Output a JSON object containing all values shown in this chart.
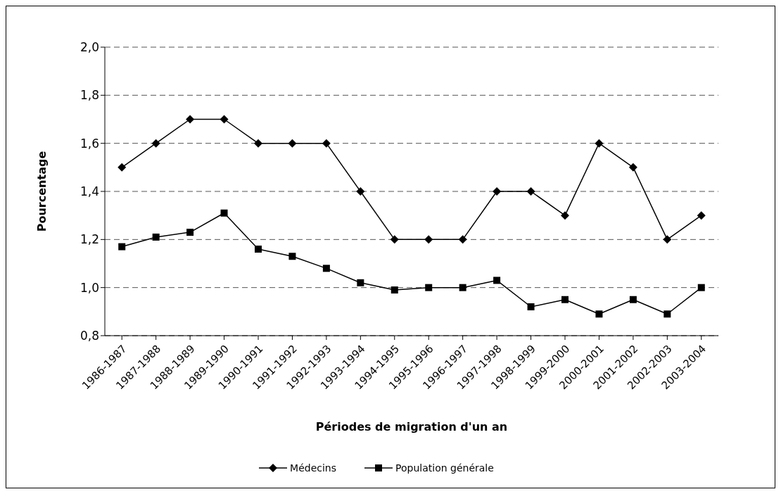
{
  "chart_data": {
    "type": "line",
    "xlabel": "Périodes de migration d'un an",
    "ylabel": "Pourcentage",
    "categories": [
      "1986-1987",
      "1987-1988",
      "1988-1989",
      "1989-1990",
      "1990-1991",
      "1991-1992",
      "1992-1993",
      "1993-1994",
      "1994-1995",
      "1995-1996",
      "1996-1997",
      "1997-1998",
      "1998-1999",
      "1999-2000",
      "2000-2001",
      "2001-2002",
      "2002-2003",
      "2003-2004"
    ],
    "series": [
      {
        "name": "Médecins",
        "color": "#000000",
        "marker": "diamond",
        "values": [
          1.5,
          1.6,
          1.7,
          1.7,
          1.6,
          1.6,
          1.6,
          1.4,
          1.2,
          1.2,
          1.2,
          1.4,
          1.4,
          1.3,
          1.6,
          1.5,
          1.2,
          1.3
        ]
      },
      {
        "name": "Population générale",
        "color": "#000000",
        "marker": "square",
        "values": [
          1.17,
          1.21,
          1.23,
          1.31,
          1.16,
          1.13,
          1.08,
          1.02,
          0.99,
          1.0,
          1.0,
          1.03,
          0.92,
          0.95,
          0.89,
          0.95,
          0.89,
          1.0
        ]
      }
    ],
    "ylim": [
      0.8,
      2.0
    ],
    "yticks": [
      {
        "value": 0.8,
        "label": "0,8"
      },
      {
        "value": 1.0,
        "label": "1,0"
      },
      {
        "value": 1.2,
        "label": "1,2"
      },
      {
        "value": 1.4,
        "label": "1,4"
      },
      {
        "value": 1.6,
        "label": "1,6"
      },
      {
        "value": 1.8,
        "label": "1,8"
      },
      {
        "value": 2.0,
        "label": "2,0"
      }
    ],
    "grid": "y",
    "legend": "bottom",
    "line_style": "solid"
  }
}
